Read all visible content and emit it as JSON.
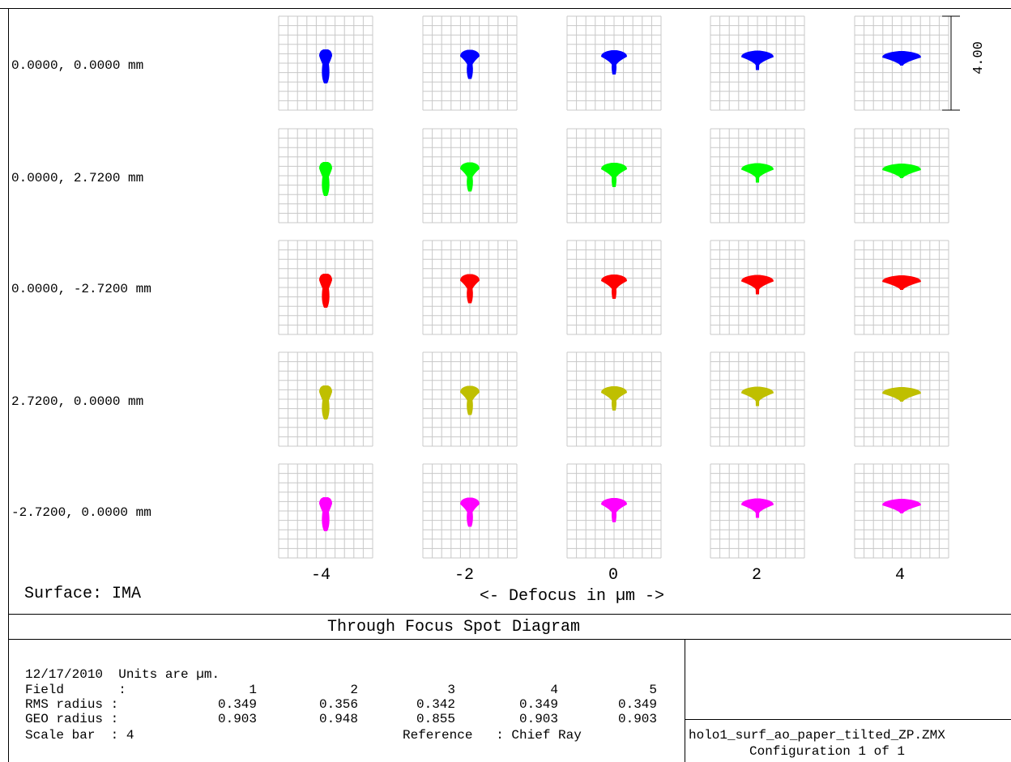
{
  "chart_data": {
    "type": "spot_diagram",
    "title": "Through Focus Spot Diagram",
    "surface": "Surface: IMA",
    "xlabel": "<- Defocus in µm ->",
    "defocus_ticks": [
      "-4",
      "-2",
      "0",
      "2",
      "4"
    ],
    "scale_bar_label": "4.00",
    "fields": [
      {
        "label": "0.0000, 0.0000 mm",
        "color": "#0000ff"
      },
      {
        "label": "0.0000, 2.7200 mm",
        "color": "#00ff00"
      },
      {
        "label": "0.0000, -2.7200 mm",
        "color": "#ff0000"
      },
      {
        "label": "2.7200, 0.0000 mm",
        "color": "#bfbf00"
      },
      {
        "label": "-2.7200, 0.0000 mm",
        "color": "#ff00ff"
      }
    ],
    "grid": true
  },
  "info": {
    "date_units": "12/17/2010  Units are µm.",
    "field_header": "Field       :",
    "rms_header": "RMS radius :",
    "geo_header": "GEO radius :",
    "scale_bar": "Scale bar  : 4",
    "reference": "Reference   : Chief Ray",
    "columns": [
      {
        "field": "1",
        "rms": "0.349",
        "geo": "0.903"
      },
      {
        "field": "2",
        "rms": "0.356",
        "geo": "0.948"
      },
      {
        "field": "3",
        "rms": "0.342",
        "geo": "0.855"
      },
      {
        "field": "4",
        "rms": "0.349",
        "geo": "0.903"
      },
      {
        "field": "5",
        "rms": "0.349",
        "geo": "0.903"
      }
    ],
    "filename": "holo1_surf_ao_paper_tilted_ZP.ZMX",
    "configuration": "Configuration 1 of 1"
  }
}
